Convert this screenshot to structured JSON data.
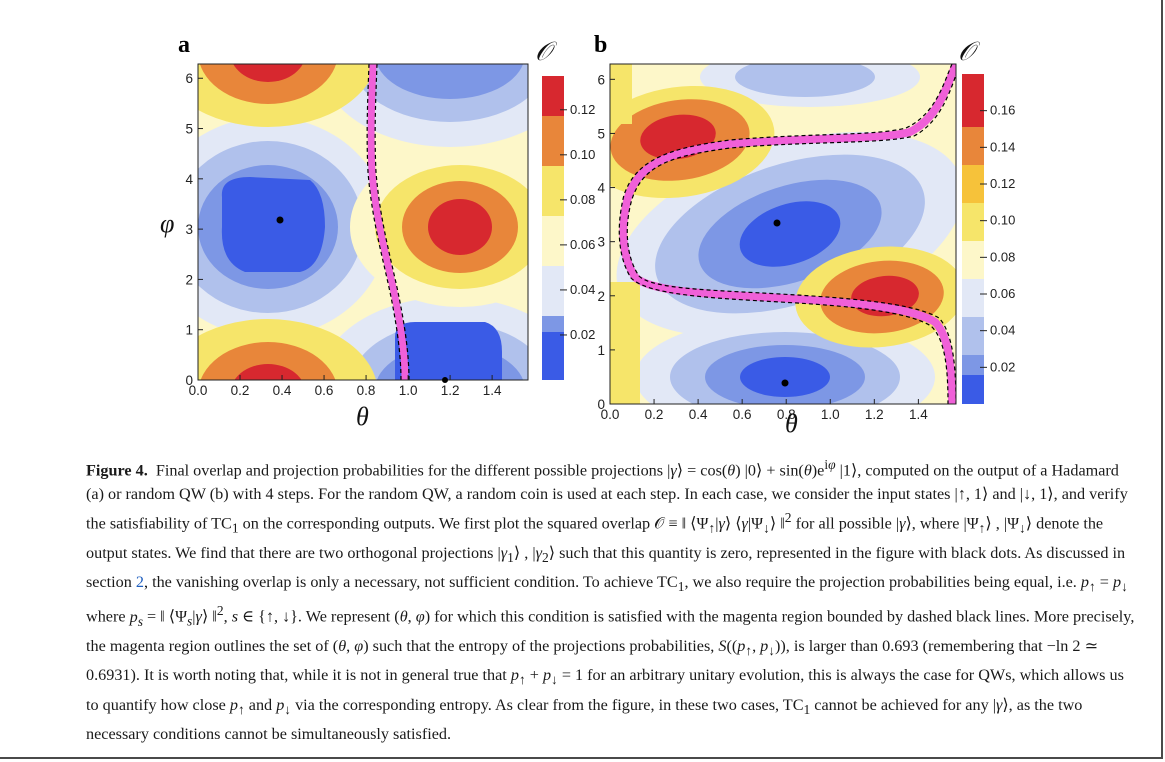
{
  "figure": {
    "panels": [
      {
        "id": "a",
        "letter": "a",
        "xlabel": "θ",
        "ylabel": "φ",
        "colorbar_label": "𝒪",
        "xticks": [
          "0.0",
          "0.2",
          "0.4",
          "0.6",
          "0.8",
          "1.0",
          "1.2",
          "1.4"
        ],
        "yticks": [
          "0",
          "1",
          "2",
          "3",
          "4",
          "5",
          "6"
        ],
        "colorbar_ticks": [
          "0.12",
          "0.10",
          "0.08",
          "0.06",
          "0.04",
          "0.02"
        ]
      },
      {
        "id": "b",
        "letter": "b",
        "xlabel": "θ",
        "ylabel": "",
        "colorbar_label": "𝒪",
        "xticks": [
          "0.0",
          "0.2",
          "0.4",
          "0.6",
          "0.8",
          "1.0",
          "1.2",
          "1.4"
        ],
        "yticks": [
          "0",
          "1",
          "2",
          "3",
          "4",
          "5",
          "6"
        ],
        "colorbar_ticks": [
          "0.16",
          "0.14",
          "0.12",
          "0.10",
          "0.08",
          "0.06",
          "0.04",
          "0.02"
        ]
      }
    ],
    "colors": {
      "red": "#d7282f",
      "orange": "#e8863a",
      "yellow": "#f6e56a",
      "pale_yellow": "#fdf7c9",
      "pale_blue": "#e2e8f6",
      "light_blue": "#b0c1ec",
      "mid_blue": "#7d97e5",
      "blue": "#3a5be6",
      "magenta": "#f060d8"
    }
  },
  "chart_data": [
    {
      "type": "heatmap",
      "panel": "a",
      "xlabel": "θ",
      "ylabel": "φ",
      "colorbar_label": "𝒪",
      "xlim": [
        0,
        1.5708
      ],
      "ylim": [
        0,
        6.2832
      ],
      "colorbar_range": [
        0.0,
        0.135
      ],
      "colorbar_ticks": [
        0.02,
        0.04,
        0.06,
        0.08,
        0.1,
        0.12
      ],
      "black_dots": [
        [
          0.39,
          3.14
        ],
        [
          1.18,
          0.0
        ]
      ],
      "magenta_curve": [
        [
          0.94,
          0.0
        ],
        [
          0.94,
          0.5
        ],
        [
          0.93,
          1.0
        ],
        [
          0.9,
          1.6
        ],
        [
          0.86,
          2.2
        ],
        [
          0.82,
          2.8
        ],
        [
          0.79,
          3.3
        ],
        [
          0.77,
          3.9
        ],
        [
          0.76,
          4.5
        ],
        [
          0.75,
          5.0
        ],
        [
          0.74,
          5.6
        ],
        [
          0.73,
          6.2832
        ]
      ],
      "extrema": [
        {
          "theta": 0.39,
          "phi": 6.2,
          "value": 0.13,
          "kind": "max"
        },
        {
          "theta": 0.39,
          "phi": 0.1,
          "value": 0.13,
          "kind": "max"
        },
        {
          "theta": 1.18,
          "phi": 3.14,
          "value": 0.13,
          "kind": "max"
        },
        {
          "theta": 0.39,
          "phi": 3.14,
          "value": 0.0,
          "kind": "min"
        },
        {
          "theta": 1.18,
          "phi": 0.4,
          "value": 0.0,
          "kind": "min"
        },
        {
          "theta": 1.18,
          "phi": 6.2,
          "value": 0.0,
          "kind": "min"
        }
      ]
    },
    {
      "type": "heatmap",
      "panel": "b",
      "xlabel": "θ",
      "ylabel": "",
      "colorbar_label": "𝒪",
      "xlim": [
        0,
        1.5708
      ],
      "ylim": [
        0,
        6.2832
      ],
      "colorbar_range": [
        0.0,
        0.18
      ],
      "colorbar_ticks": [
        0.02,
        0.04,
        0.06,
        0.08,
        0.1,
        0.12,
        0.14,
        0.16
      ],
      "black_dots": [
        [
          0.77,
          3.5
        ],
        [
          0.8,
          0.37
        ]
      ],
      "magenta_curve": [
        [
          1.5,
          0.0
        ],
        [
          1.49,
          0.6
        ],
        [
          1.46,
          1.2
        ],
        [
          1.4,
          1.65
        ],
        [
          1.25,
          1.9
        ],
        [
          1.0,
          2.05
        ],
        [
          0.65,
          2.15
        ],
        [
          0.4,
          2.2
        ],
        [
          0.22,
          2.3
        ],
        [
          0.12,
          2.6
        ],
        [
          0.09,
          3.3
        ],
        [
          0.09,
          4.2
        ],
        [
          0.12,
          4.8
        ],
        [
          0.25,
          5.1
        ],
        [
          0.5,
          5.2
        ],
        [
          0.85,
          5.25
        ],
        [
          1.15,
          5.35
        ],
        [
          1.35,
          5.6
        ],
        [
          1.44,
          5.9
        ],
        [
          1.48,
          6.2832
        ]
      ],
      "extrema": [
        {
          "theta": 0.3,
          "phi": 5.0,
          "value": 0.17,
          "kind": "max"
        },
        {
          "theta": 1.25,
          "phi": 2.0,
          "value": 0.17,
          "kind": "max"
        },
        {
          "theta": 0.77,
          "phi": 3.5,
          "value": 0.0,
          "kind": "min"
        },
        {
          "theta": 0.8,
          "phi": 0.37,
          "value": 0.0,
          "kind": "min"
        },
        {
          "theta": 0.8,
          "phi": 5.5,
          "value": 0.06,
          "kind": "min"
        }
      ]
    }
  ]
}
